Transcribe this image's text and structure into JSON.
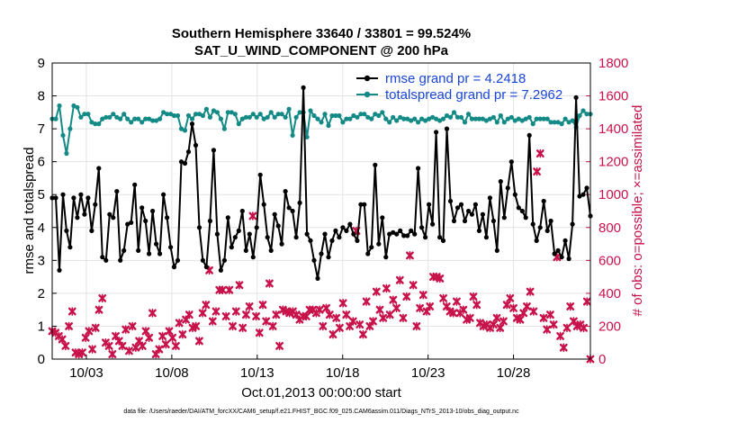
{
  "chart_data": {
    "type": "line",
    "title": "Southern Hemisphere 33640 / 33801 = 99.524%",
    "subtitle": "SAT_U_WIND_COMPONENT @ 200 hPa",
    "xlabel": "Oct.01,2013 00:00:00 start",
    "ylabel": "rmse and totalspread",
    "ylabel_right": "# of obs: o=possible; ×=assimilated",
    "footnote": "data file: /Users/raeder/DAI/ATM_forcXX/CAM6_setup/f.e21.FHIST_BGC.f09_025.CAM6assim.011/Diags_NTrS_2013-10/obs_diag_output.nc",
    "x_tick_labels": [
      "10/03",
      "10/08",
      "10/13",
      "10/18",
      "10/23",
      "10/28"
    ],
    "x_tick_days": [
      3,
      8,
      13,
      18,
      23,
      28
    ],
    "xlim_days": [
      1,
      32.5
    ],
    "ylim": [
      0,
      9
    ],
    "yticks": [
      0,
      1,
      2,
      3,
      4,
      5,
      6,
      7,
      8,
      9
    ],
    "ylim_right": [
      0,
      1800
    ],
    "yticks_right": [
      0,
      200,
      400,
      600,
      800,
      1000,
      1200,
      1400,
      1600,
      1800
    ],
    "grid": true,
    "legend_placement": "top-right",
    "colors": {
      "rmse": "#000000",
      "totalspread": "#138a86",
      "obs": "#c8124a",
      "legend_text": "#1a46d6"
    },
    "series": [
      {
        "name": "rmse grand pr = 4.2418",
        "axis": "left",
        "values": [
          4.9,
          4.9,
          2.7,
          5.0,
          3.9,
          3.4,
          4.9,
          4.3,
          5.0,
          4.4,
          4.9,
          3.9,
          4.7,
          5.8,
          3.1,
          3.0,
          4.4,
          4.3,
          5.1,
          3.0,
          3.3,
          4.1,
          4.15,
          5.3,
          3.3,
          4.6,
          4.2,
          3.2,
          4.5,
          3.5,
          3.2,
          5.0,
          4.3,
          3.4,
          2.8,
          3.0,
          6.0,
          5.95,
          6.3,
          7.15,
          6.5,
          4.0,
          3.0,
          2.8,
          4.2,
          6.35,
          3.8,
          2.7,
          3.0,
          4.3,
          3.4,
          3.7,
          3.9,
          4.5,
          3.3,
          3.8,
          3.1,
          4.0,
          5.6,
          4.7,
          3.7,
          3.3,
          4.4,
          4.05,
          3.5,
          5.1,
          4.6,
          4.5,
          3.7,
          4.75,
          8.25,
          3.8,
          3.6,
          3.0,
          2.45,
          3.2,
          3.8,
          3.1,
          3.6,
          3.9,
          3.7,
          4.0,
          3.9,
          4.1,
          3.8,
          3.6,
          4.7,
          4.7,
          3.2,
          3.4,
          5.9,
          3.5,
          4.3,
          3.1,
          3.8,
          3.85,
          3.8,
          3.9,
          3.75,
          3.75,
          3.9,
          3.8,
          5.8,
          4.0,
          3.7,
          4.7,
          4.1,
          6.9,
          3.7,
          3.6,
          7.0,
          4.8,
          4.2,
          4.6,
          4.7,
          4.2,
          4.5,
          4.4,
          4.7,
          3.9,
          4.4,
          3.7,
          4.9,
          4.2,
          3.3,
          5.4,
          4.3,
          5.2,
          6.0,
          5.0,
          4.6,
          4.5,
          4.3,
          6.8,
          4.1,
          3.6,
          4.0,
          4.8,
          3.9,
          4.2,
          3.2,
          3.3,
          3.1,
          3.6,
          3.05,
          4.1,
          7.95,
          4.95,
          5.0,
          5.2,
          4.35
        ]
      },
      {
        "name": "totalspread grand pr = 7.2962",
        "axis": "left",
        "values": [
          7.3,
          7.3,
          7.7,
          6.8,
          6.25,
          7.0,
          7.7,
          7.65,
          7.35,
          7.45,
          7.45,
          7.2,
          7.15,
          7.15,
          7.3,
          7.35,
          7.35,
          7.45,
          7.35,
          7.3,
          7.45,
          7.3,
          7.2,
          7.3,
          7.3,
          7.2,
          7.3,
          7.3,
          7.25,
          7.25,
          7.3,
          7.5,
          7.45,
          7.45,
          7.4,
          7.4,
          7.0,
          6.95,
          7.4,
          7.3,
          7.45,
          7.45,
          7.4,
          7.6,
          7.35,
          7.55,
          7.5,
          7.3,
          7.0,
          7.5,
          7.5,
          7.45,
          7.15,
          7.3,
          7.35,
          7.35,
          7.45,
          7.35,
          7.45,
          7.3,
          7.35,
          7.5,
          7.35,
          7.45,
          7.45,
          7.35,
          7.6,
          6.8,
          7.35,
          7.5,
          7.5,
          6.75,
          7.55,
          7.4,
          7.3,
          7.2,
          7.45,
          7.1,
          7.4,
          7.4,
          7.4,
          7.2,
          7.3,
          7.3,
          7.4,
          7.35,
          7.45,
          7.45,
          7.35,
          7.3,
          7.45,
          7.4,
          7.5,
          7.3,
          7.2,
          7.35,
          7.25,
          7.35,
          7.3,
          7.3,
          7.25,
          7.3,
          7.2,
          7.3,
          7.25,
          7.3,
          7.35,
          7.3,
          7.25,
          7.3,
          7.4,
          7.35,
          7.5,
          7.35,
          7.35,
          7.2,
          7.45,
          7.3,
          7.3,
          7.3,
          7.3,
          7.25,
          7.3,
          7.35,
          7.2,
          7.4,
          7.2,
          7.3,
          7.35,
          7.25,
          7.3,
          7.25,
          7.3,
          7.35,
          7.15,
          7.3,
          7.3,
          7.3,
          7.3,
          7.2,
          7.2,
          7.2,
          7.15,
          7.3,
          7.2,
          7.25,
          7.05,
          7.4,
          7.55,
          7.45,
          7.45
        ]
      },
      {
        "name": "assimilated",
        "axis": "right",
        "marker": "x",
        "values": [
          170,
          160,
          140,
          120,
          80,
          200,
          290,
          40,
          30,
          40,
          130,
          170,
          60,
          190,
          300,
          370,
          100,
          80,
          30,
          140,
          110,
          80,
          180,
          50,
          200,
          70,
          110,
          80,
          170,
          130,
          280,
          30,
          60,
          140,
          90,
          170,
          130,
          80,
          220,
          150,
          240,
          270,
          190,
          200,
          110,
          280,
          330,
          540,
          230,
          290,
          420,
          420,
          260,
          420,
          200,
          290,
          450,
          190,
          270,
          320,
          870,
          260,
          160,
          330,
          230,
          460,
          200,
          270,
          80,
          300,
          290,
          280,
          290,
          270,
          240,
          260,
          260,
          300,
          300,
          280,
          300,
          200,
          310,
          270,
          150,
          250,
          190,
          340,
          270,
          200,
          230,
          780,
          210,
          150,
          350,
          200,
          230,
          410,
          300,
          250,
          430,
          270,
          360,
          310,
          480,
          250,
          380,
          630,
          450,
          200,
          310,
          390,
          290,
          320,
          500,
          500,
          490,
          370,
          320,
          290,
          280,
          350,
          280,
          300,
          240,
          250,
          380,
          330,
          220,
          200,
          210,
          190,
          210,
          250,
          190,
          230,
          330,
          370,
          310,
          250,
          240,
          280,
          320,
          410,
          290,
          1140,
          1250,
          250,
          180,
          270,
          210,
          620,
          140,
          70,
          190,
          320,
          230,
          200,
          210,
          190,
          350,
          0
        ]
      }
    ]
  }
}
